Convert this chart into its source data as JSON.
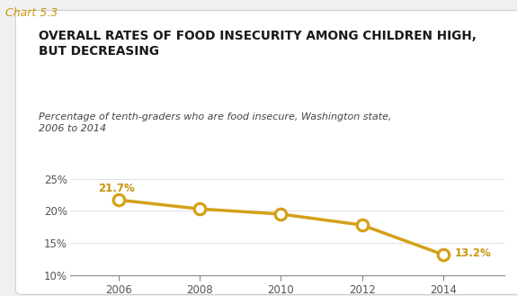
{
  "chart_label": "Chart 5.3",
  "title": "OVERALL RATES OF FOOD INSECURITY AMONG CHILDREN HIGH,\nBUT DECREASING",
  "subtitle": "Percentage of tenth-graders who are food insecure, Washington state,\n2006 to 2014",
  "years": [
    2006,
    2008,
    2010,
    2012,
    2014
  ],
  "values": [
    21.7,
    20.3,
    19.5,
    17.8,
    13.2
  ],
  "line_color": "#D4A017",
  "marker_color": "#D4A017",
  "ylim": [
    10,
    27
  ],
  "yticks": [
    10,
    15,
    20,
    25
  ],
  "ytick_labels": [
    "10%",
    "15%",
    "20%",
    "25%"
  ],
  "xticks": [
    2006,
    2008,
    2010,
    2012,
    2014
  ],
  "background_color": "#FFFFFF",
  "outer_bg_color": "#F0F0F0",
  "chart_label_color": "#C8960C",
  "title_color": "#1a1a1a",
  "subtitle_color": "#444444",
  "annotation_color": "#C8960C",
  "label_first": "21.7%",
  "label_last": "13.2%",
  "box_edge_color": "#cccccc",
  "tick_color": "#888888",
  "spine_color": "#888888"
}
